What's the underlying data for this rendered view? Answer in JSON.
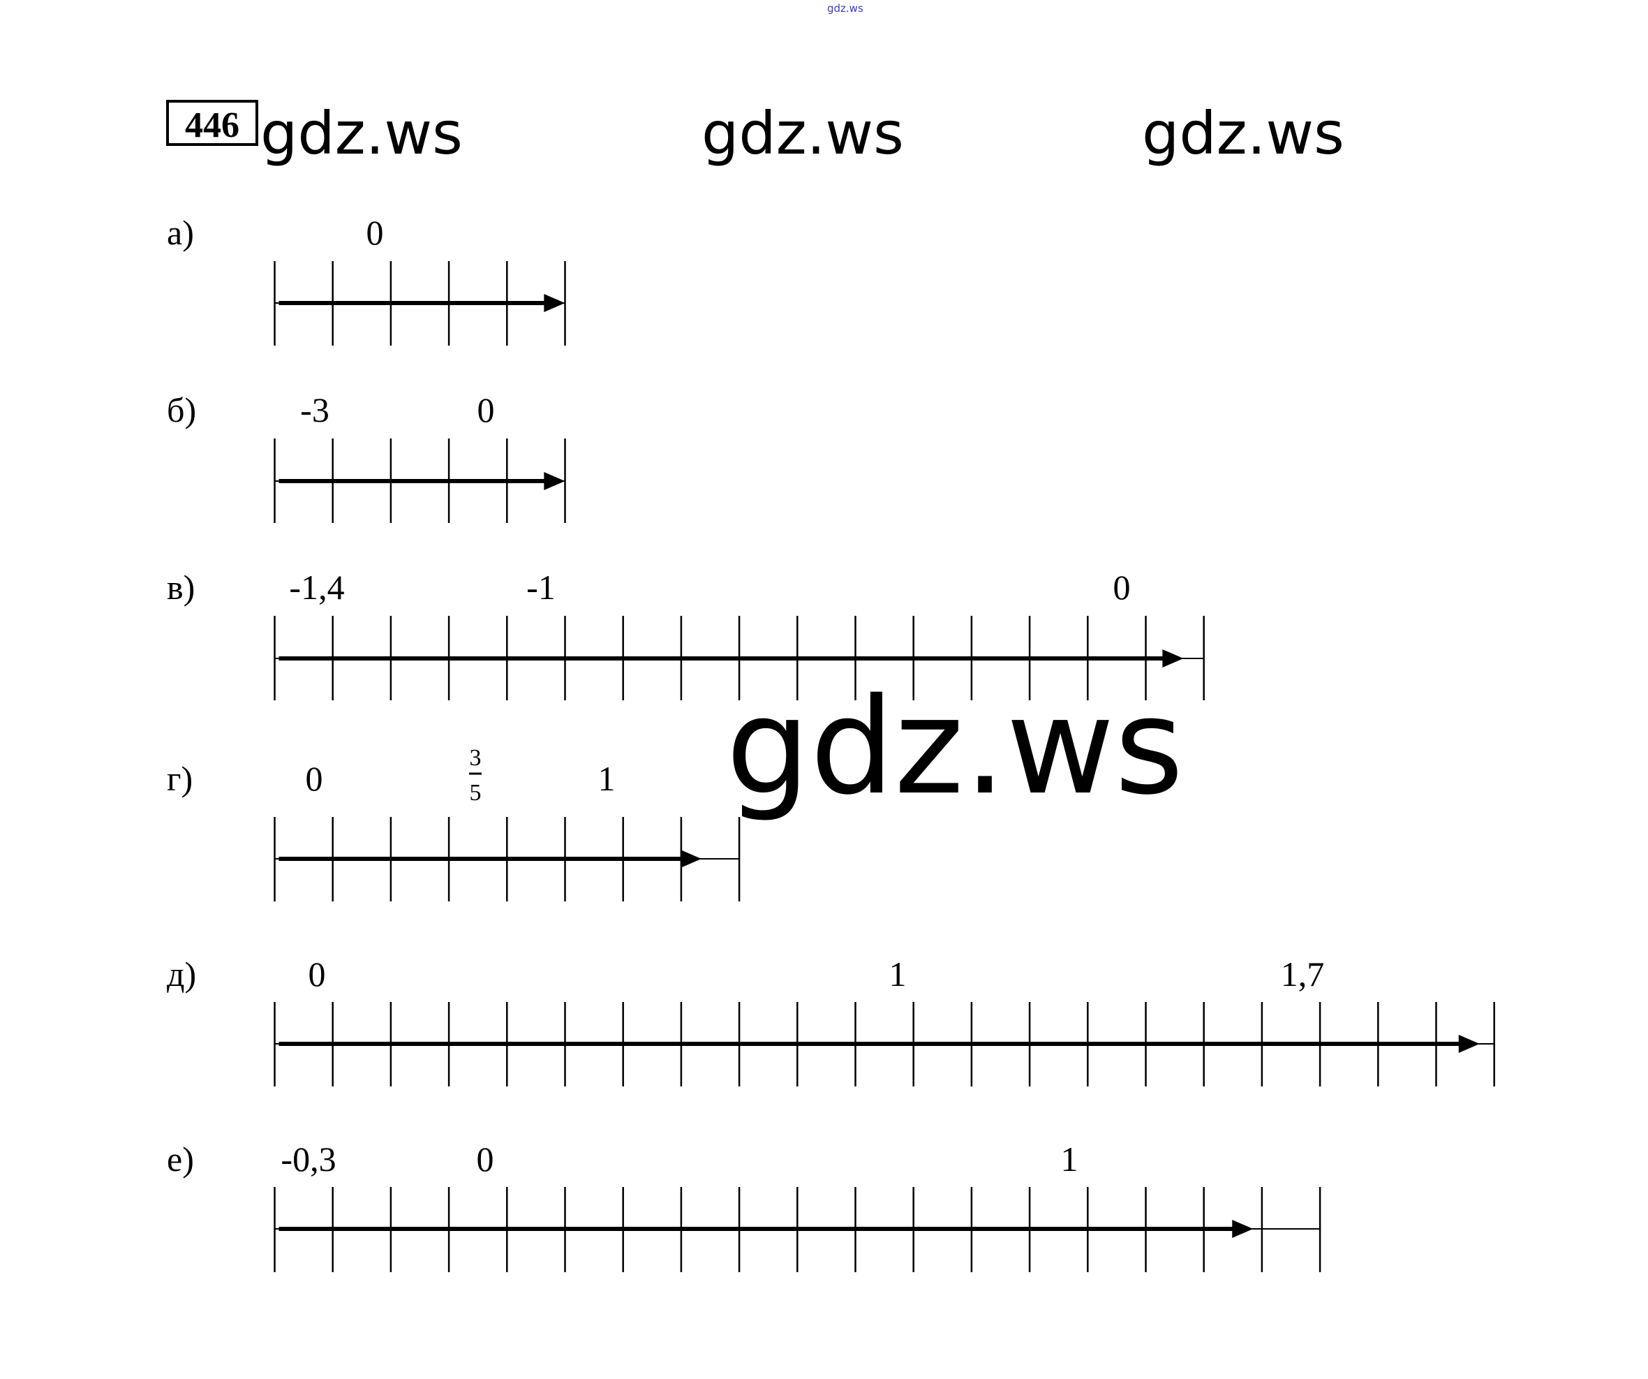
{
  "header": {
    "top_watermark": "gdz.ws",
    "top_watermark_color": "#3b3bd6",
    "problem_number": "446",
    "watermarks": [
      "gdz.ws",
      "gdz.ws",
      "gdz.ws"
    ],
    "center_watermark": "gdz.ws"
  },
  "problems": [
    {
      "letter": "а)",
      "labels": [
        "0"
      ]
    },
    {
      "letter": "б)",
      "labels": [
        "-3",
        "0"
      ]
    },
    {
      "letter": "в)",
      "labels": [
        "-1,4",
        "-1",
        "0"
      ]
    },
    {
      "letter": "г)",
      "labels": [
        "0",
        "3/5",
        "1"
      ],
      "fraction": {
        "numerator": "3",
        "denominator": "5"
      }
    },
    {
      "letter": "д)",
      "labels": [
        "0",
        "1",
        "1,7"
      ]
    },
    {
      "letter": "е)",
      "labels": [
        "-0,3",
        "0",
        "1"
      ]
    }
  ]
}
